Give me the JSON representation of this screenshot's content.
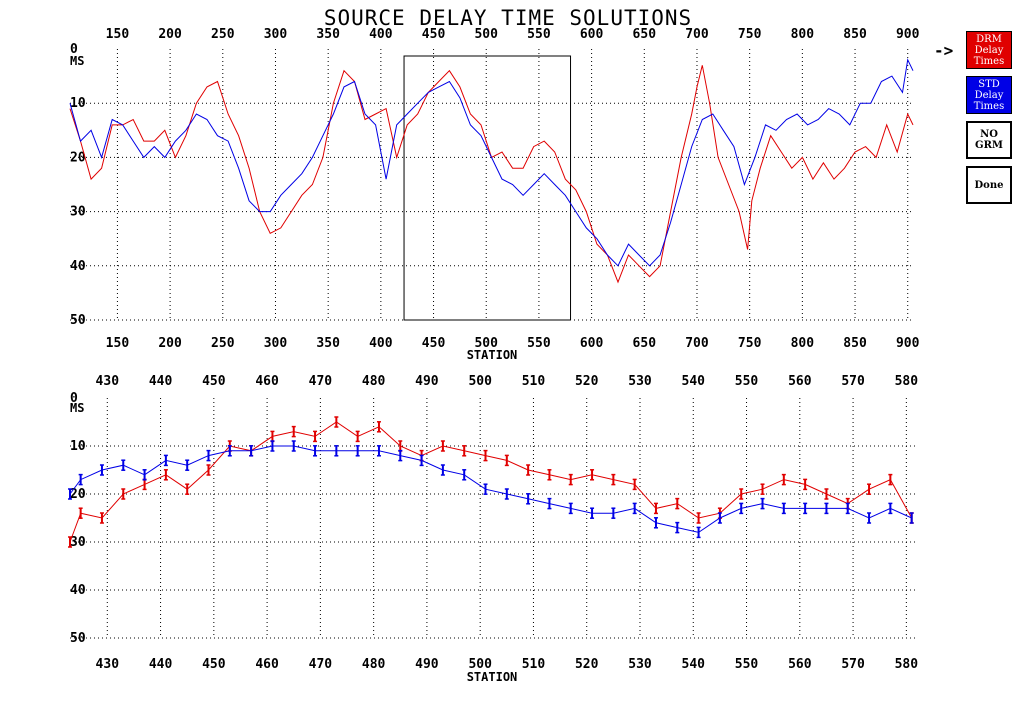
{
  "title": "SOURCE DELAY TIME SOLUTIONS",
  "selection_arrow": "->",
  "buttons": {
    "drm": "DRM\nDelay\nTimes",
    "std": "STD\nDelay\nTimes",
    "no_grm": "NO\nGRM",
    "done": "Done"
  },
  "colors": {
    "drm": "#e00000",
    "std": "#0000e6"
  },
  "chart_data": [
    {
      "type": "line",
      "xlabel": "STATION",
      "ylabel": "MS",
      "xlim": [
        105,
        905
      ],
      "ylim": [
        0,
        50
      ],
      "y_inverted": true,
      "x_ticks": [
        150,
        200,
        250,
        300,
        350,
        400,
        450,
        500,
        550,
        600,
        650,
        700,
        750,
        800,
        850,
        900
      ],
      "y_ticks": [
        0,
        10,
        20,
        30,
        40,
        50
      ],
      "grid": true,
      "zoom_window_x": [
        422,
        580
      ],
      "series": [
        {
          "name": "DRM Delay Times",
          "color": "#e00000",
          "x": [
            105,
            115,
            125,
            135,
            145,
            155,
            165,
            175,
            185,
            195,
            205,
            215,
            225,
            235,
            245,
            255,
            265,
            275,
            285,
            295,
            305,
            315,
            325,
            335,
            345,
            355,
            365,
            375,
            385,
            395,
            405,
            415,
            425,
            435,
            445,
            455,
            465,
            475,
            485,
            495,
            505,
            515,
            525,
            535,
            545,
            555,
            565,
            575,
            585,
            595,
            605,
            615,
            625,
            635,
            645,
            655,
            665,
            675,
            685,
            695,
            700,
            705,
            712,
            720,
            730,
            740,
            748,
            752,
            760,
            770,
            780,
            790,
            800,
            810,
            820,
            830,
            840,
            850,
            860,
            870,
            880,
            890,
            900,
            905
          ],
          "values": [
            11,
            17,
            24,
            22,
            14,
            14,
            13,
            17,
            17,
            15,
            20,
            16,
            10,
            7,
            6,
            12,
            16,
            22,
            30,
            34,
            33,
            30,
            27,
            25,
            20,
            10,
            4,
            6,
            13,
            12,
            11,
            20,
            14,
            12,
            8,
            6,
            4,
            7,
            12,
            14,
            20,
            19,
            22,
            22,
            18,
            17,
            19,
            24,
            26,
            30,
            36,
            38,
            43,
            38,
            40,
            42,
            40,
            30,
            20,
            12,
            7,
            3,
            10,
            20,
            25,
            30,
            37,
            28,
            22,
            16,
            19,
            22,
            20,
            24,
            21,
            24,
            22,
            19,
            18,
            20,
            14,
            19,
            12,
            14
          ]
        },
        {
          "name": "STD Delay Times",
          "color": "#0000e6",
          "x": [
            105,
            115,
            125,
            135,
            145,
            155,
            165,
            175,
            185,
            195,
            205,
            215,
            225,
            235,
            245,
            255,
            265,
            275,
            285,
            295,
            305,
            315,
            325,
            335,
            345,
            355,
            365,
            375,
            385,
            395,
            405,
            415,
            425,
            435,
            445,
            455,
            465,
            475,
            485,
            495,
            505,
            515,
            525,
            535,
            545,
            555,
            565,
            575,
            585,
            595,
            605,
            615,
            625,
            635,
            645,
            655,
            665,
            675,
            685,
            695,
            705,
            715,
            725,
            735,
            745,
            755,
            765,
            775,
            785,
            795,
            805,
            815,
            825,
            835,
            845,
            855,
            865,
            875,
            885,
            895,
            900,
            905
          ],
          "values": [
            10,
            17,
            15,
            20,
            13,
            14,
            17,
            20,
            18,
            20,
            17,
            15,
            12,
            13,
            16,
            17,
            22,
            28,
            30,
            30,
            27,
            25,
            23,
            20,
            16,
            12,
            7,
            6,
            12,
            14,
            24,
            14,
            12,
            10,
            8,
            7,
            6,
            9,
            14,
            16,
            20,
            24,
            25,
            27,
            25,
            23,
            25,
            27,
            30,
            33,
            35,
            38,
            40,
            36,
            38,
            40,
            38,
            32,
            25,
            18,
            13,
            12,
            15,
            18,
            25,
            20,
            14,
            15,
            13,
            12,
            14,
            13,
            11,
            12,
            14,
            10,
            10,
            6,
            5,
            8,
            2,
            4
          ]
        }
      ]
    },
    {
      "type": "line",
      "xlabel": "STATION",
      "ylabel": "MS",
      "xlim": [
        423,
        582
      ],
      "ylim": [
        0,
        50
      ],
      "y_inverted": true,
      "x_ticks": [
        430,
        440,
        450,
        460,
        470,
        480,
        490,
        500,
        510,
        520,
        530,
        540,
        550,
        560,
        570,
        580
      ],
      "y_ticks": [
        0,
        10,
        20,
        30,
        40,
        50
      ],
      "grid": true,
      "series": [
        {
          "name": "DRM Delay Times",
          "color": "#e00000",
          "marker": "I",
          "x": [
            423,
            425,
            429,
            433,
            437,
            441,
            445,
            449,
            453,
            457,
            461,
            465,
            469,
            473,
            477,
            481,
            485,
            489,
            493,
            497,
            501,
            505,
            509,
            513,
            517,
            521,
            525,
            529,
            533,
            537,
            541,
            545,
            549,
            553,
            557,
            561,
            565,
            569,
            573,
            577,
            581
          ],
          "values": [
            30,
            24,
            25,
            20,
            18,
            16,
            19,
            15,
            10,
            11,
            8,
            7,
            8,
            5,
            8,
            6,
            10,
            12,
            10,
            11,
            12,
            13,
            15,
            16,
            17,
            16,
            17,
            18,
            23,
            22,
            25,
            24,
            20,
            19,
            17,
            18,
            20,
            22,
            19,
            17,
            25
          ]
        },
        {
          "name": "STD Delay Times",
          "color": "#0000e6",
          "marker": "I",
          "x": [
            423,
            425,
            429,
            433,
            437,
            441,
            445,
            449,
            453,
            457,
            461,
            465,
            469,
            473,
            477,
            481,
            485,
            489,
            493,
            497,
            501,
            505,
            509,
            513,
            517,
            521,
            525,
            529,
            533,
            537,
            541,
            545,
            549,
            553,
            557,
            561,
            565,
            569,
            573,
            577,
            581
          ],
          "values": [
            20,
            17,
            15,
            14,
            16,
            13,
            14,
            12,
            11,
            11,
            10,
            10,
            11,
            11,
            11,
            11,
            12,
            13,
            15,
            16,
            19,
            20,
            21,
            22,
            23,
            24,
            24,
            23,
            26,
            27,
            28,
            25,
            23,
            22,
            23,
            23,
            23,
            23,
            25,
            23,
            25
          ]
        }
      ]
    }
  ]
}
